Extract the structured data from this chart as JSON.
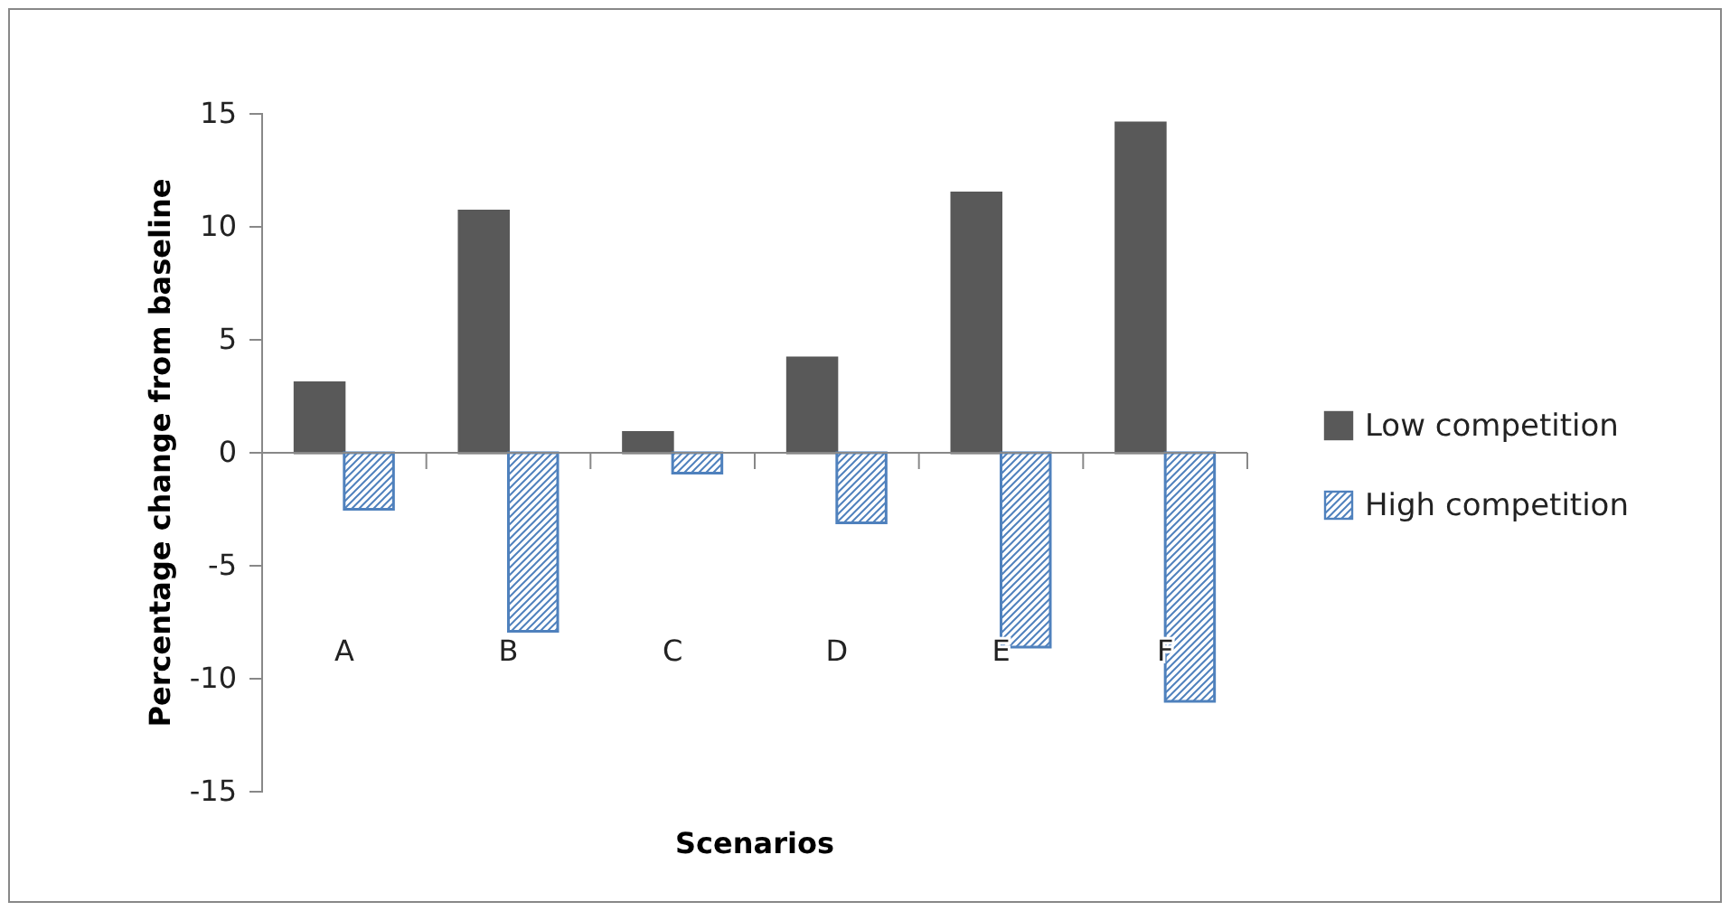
{
  "chart_data": {
    "type": "bar",
    "xlabel": "Scenarios",
    "ylabel": "Percentage change from baseline",
    "categories": [
      "A",
      "B",
      "C",
      "D",
      "E",
      "F"
    ],
    "series": [
      {
        "name": "Low competition",
        "color": "#595959",
        "values": [
          3.1,
          10.7,
          0.9,
          4.2,
          11.5,
          14.6
        ]
      },
      {
        "name": "High competition",
        "color": "#4f81bd",
        "values": [
          -2.5,
          -7.9,
          -0.9,
          -3.1,
          -8.6,
          -11.0
        ]
      }
    ],
    "ylim": [
      -15,
      15
    ],
    "yticks": [
      -15,
      -10,
      -5,
      0,
      5,
      10,
      15
    ],
    "legend": "right"
  }
}
